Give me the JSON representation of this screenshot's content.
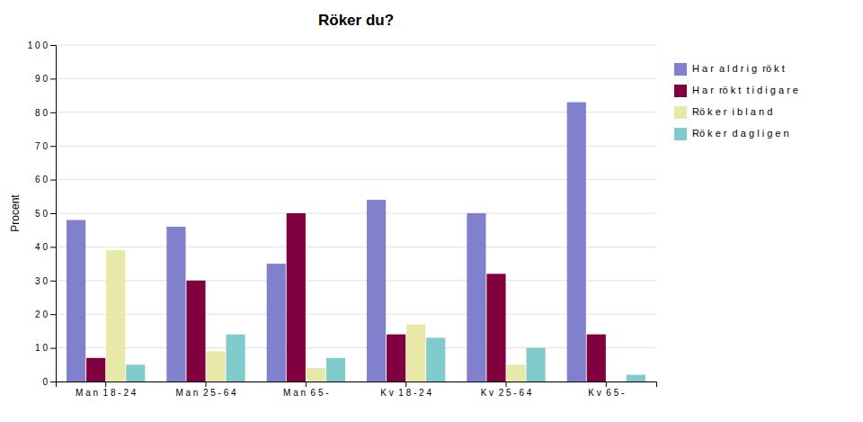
{
  "chart_data": {
    "type": "bar",
    "title": "Röker du?",
    "categories": [
      "M a n  1 8 - 2 4",
      "M a n  2 5 - 6 4",
      "M a n  6 5 -",
      "K v  1 8 - 2 4",
      "K v  2 5 - 6 4",
      "K v  6 5 -"
    ],
    "series": [
      {
        "name": "H a r  a l d r i g  rö k t",
        "color": "#8080cc",
        "values": [
          48,
          46,
          35,
          54,
          50,
          83
        ]
      },
      {
        "name": "H a r  rö k t  t i d i g a r e",
        "color": "#80003f",
        "values": [
          7,
          30,
          50,
          14,
          32,
          14
        ]
      },
      {
        "name": "Rö k e r  i b l a n d",
        "color": "#e8e8a8",
        "values": [
          39,
          9,
          4,
          17,
          5,
          0
        ]
      },
      {
        "name": "Rö k e r  d a g l i g e n",
        "color": "#80cccc",
        "values": [
          5,
          14,
          7,
          13,
          10,
          2
        ]
      }
    ],
    "ylabel": "Procent",
    "ylim": [
      0,
      100
    ],
    "yticks": [
      0,
      {
        "value": 10,
        "label": "1 0"
      },
      {
        "value": 20,
        "label": "2 0"
      },
      {
        "value": 30,
        "label": "3 0"
      },
      {
        "value": 40,
        "label": "4 0"
      },
      {
        "value": 50,
        "label": "5 0"
      },
      {
        "value": 60,
        "label": "6 0"
      },
      {
        "value": 70,
        "label": "7 0"
      },
      {
        "value": 80,
        "label": "8 0"
      },
      {
        "value": 90,
        "label": "9 0"
      },
      {
        "value": 100,
        "label": "1 0 0"
      }
    ],
    "grid": true,
    "legend": "right"
  }
}
